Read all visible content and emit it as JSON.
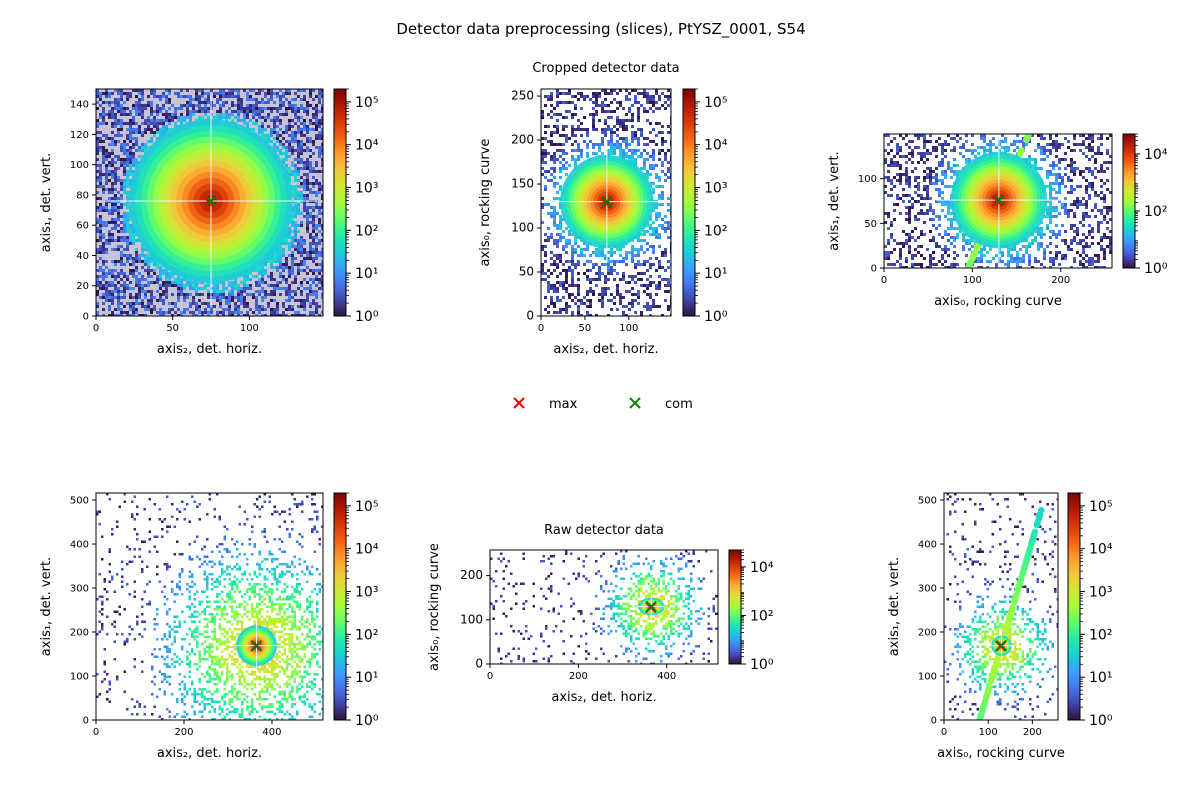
{
  "figure": {
    "title": "Detector data preprocessing (slices), PtYSZ_0001, S54",
    "legend": {
      "placement": "below-top-middle",
      "entries": [
        {
          "label": "max",
          "marker": "x",
          "color": "#ff0000"
        },
        {
          "label": "com",
          "marker": "x",
          "color": "#008000"
        }
      ]
    },
    "colormap": [
      "#30123b",
      "#4145ab",
      "#4675ed",
      "#39a2fc",
      "#1bcfd4",
      "#24eca6",
      "#61fc6c",
      "#a4fc3b",
      "#d1e834",
      "#f3c63a",
      "#fe9b2d",
      "#f36315",
      "#d93806",
      "#b11901",
      "#7a0402"
    ]
  },
  "chart_data": [
    {
      "id": "cropped-xy",
      "type": "heatmap",
      "title": "",
      "xlabel": "axis₂, det. horiz.",
      "ylabel": "axis₁, det. vert.",
      "xlim": [
        0,
        148
      ],
      "ylim": [
        150,
        0
      ],
      "xticks": [
        0,
        50,
        100
      ],
      "yticks": [
        0,
        20,
        40,
        60,
        80,
        100,
        120,
        140
      ],
      "color_scale": "log",
      "clim": [
        1,
        200000
      ],
      "colorbar_ticks": [
        {
          "value": 1,
          "label": "10⁰"
        },
        {
          "value": 10,
          "label": "10¹"
        },
        {
          "value": 100,
          "label": "10²"
        },
        {
          "value": 1000,
          "label": "10³"
        },
        {
          "value": 10000,
          "label": "10⁴"
        },
        {
          "value": 100000,
          "label": "10⁵"
        }
      ],
      "max_position": [
        74,
        75
      ],
      "com_position": [
        75,
        76
      ]
    },
    {
      "id": "cropped-x-rocking",
      "type": "heatmap",
      "title": "Cropped detector data",
      "xlabel": "axis₂, det. horiz.",
      "ylabel": "axis₀, rocking curve",
      "xlim": [
        0,
        148
      ],
      "ylim": [
        258,
        0
      ],
      "xticks": [
        0,
        50,
        100
      ],
      "yticks": [
        0,
        50,
        100,
        150,
        200,
        250
      ],
      "color_scale": "log",
      "clim": [
        1,
        200000
      ],
      "colorbar_ticks": [
        {
          "value": 1,
          "label": "10⁰"
        },
        {
          "value": 10,
          "label": "10¹"
        },
        {
          "value": 100,
          "label": "10²"
        },
        {
          "value": 1000,
          "label": "10³"
        },
        {
          "value": 10000,
          "label": "10⁴"
        },
        {
          "value": 100000,
          "label": "10⁵"
        }
      ],
      "max_position": [
        74,
        128
      ],
      "com_position": [
        75,
        130
      ]
    },
    {
      "id": "cropped-rocking-y",
      "type": "heatmap",
      "title": "",
      "xlabel": "axis₀, rocking curve",
      "ylabel": "axis₁, det. vert.",
      "xlim": [
        0,
        258
      ],
      "ylim": [
        150,
        0
      ],
      "xticks": [
        0,
        100,
        200
      ],
      "yticks": [
        0,
        50,
        100
      ],
      "color_scale": "log",
      "clim": [
        1,
        50000
      ],
      "colorbar_ticks": [
        {
          "value": 1,
          "label": "10⁰"
        },
        {
          "value": 100,
          "label": "10²"
        },
        {
          "value": 10000,
          "label": "10⁴"
        }
      ],
      "max_position": [
        128,
        75
      ],
      "com_position": [
        130,
        76
      ]
    },
    {
      "id": "raw-xy",
      "type": "heatmap",
      "title": "",
      "xlabel": "axis₂, det. horiz.",
      "ylabel": "axis₁, det. vert.",
      "xlim": [
        0,
        516
      ],
      "ylim": [
        516,
        0
      ],
      "xticks": [
        0,
        200,
        400
      ],
      "yticks": [
        0,
        100,
        200,
        300,
        400,
        500
      ],
      "color_scale": "log",
      "clim": [
        1,
        200000
      ],
      "colorbar_ticks": [
        {
          "value": 1,
          "label": "10⁰"
        },
        {
          "value": 10,
          "label": "10¹"
        },
        {
          "value": 100,
          "label": "10²"
        },
        {
          "value": 1000,
          "label": "10³"
        },
        {
          "value": 10000,
          "label": "10⁴"
        },
        {
          "value": 100000,
          "label": "10⁵"
        }
      ],
      "max_position": [
        364,
        168
      ],
      "com_position": [
        365,
        169
      ]
    },
    {
      "id": "raw-x-rocking",
      "type": "heatmap",
      "title": "Raw detector data",
      "xlabel": "axis₂, det. horiz.",
      "ylabel": "axis₀, rocking curve",
      "xlim": [
        0,
        516
      ],
      "ylim": [
        258,
        0
      ],
      "xticks": [
        0,
        200,
        400
      ],
      "yticks": [
        0,
        100,
        200
      ],
      "color_scale": "log",
      "clim": [
        1,
        50000
      ],
      "colorbar_ticks": [
        {
          "value": 1,
          "label": "10⁰"
        },
        {
          "value": 100,
          "label": "10²"
        },
        {
          "value": 10000,
          "label": "10⁴"
        }
      ],
      "max_position": [
        364,
        128
      ],
      "com_position": [
        365,
        130
      ]
    },
    {
      "id": "raw-rocking-y",
      "type": "heatmap",
      "title": "",
      "xlabel": "axis₀, rocking curve",
      "ylabel": "axis₁, det. vert.",
      "xlim": [
        0,
        258
      ],
      "ylim": [
        516,
        0
      ],
      "xticks": [
        0,
        100,
        200
      ],
      "yticks": [
        0,
        100,
        200,
        300,
        400,
        500
      ],
      "color_scale": "log",
      "clim": [
        1,
        200000
      ],
      "colorbar_ticks": [
        {
          "value": 1,
          "label": "10⁰"
        },
        {
          "value": 10,
          "label": "10¹"
        },
        {
          "value": 100,
          "label": "10²"
        },
        {
          "value": 1000,
          "label": "10³"
        },
        {
          "value": 10000,
          "label": "10⁴"
        },
        {
          "value": 100000,
          "label": "10⁵"
        }
      ],
      "max_position": [
        128,
        168
      ],
      "com_position": [
        130,
        169
      ]
    }
  ]
}
